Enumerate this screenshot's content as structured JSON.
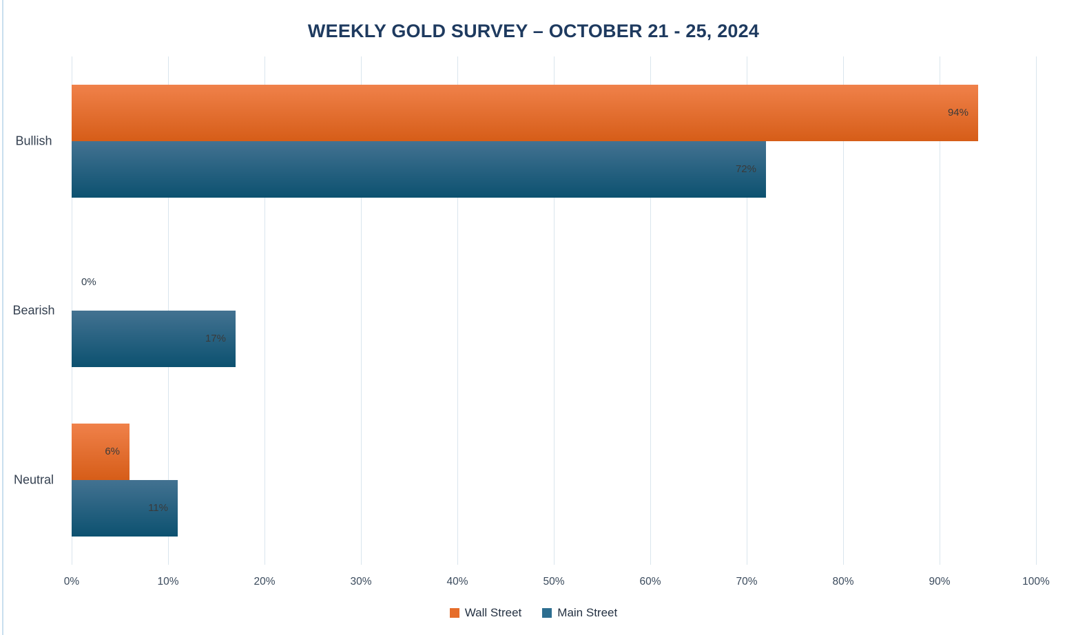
{
  "chart_data": {
    "type": "bar",
    "orientation": "horizontal",
    "title": "WEEKLY GOLD SURVEY – OCTOBER 21 - 25, 2024",
    "categories": [
      "Bullish",
      "Bearish",
      "Neutral"
    ],
    "series": [
      {
        "name": "Wall Street",
        "values": [
          94,
          0,
          6
        ],
        "color_top": "#f0814a",
        "color_bottom": "#d65d18",
        "legend_color": "#e66d2a"
      },
      {
        "name": "Main Street",
        "values": [
          72,
          17,
          11
        ],
        "color_top": "#437291",
        "color_bottom": "#0c5170",
        "legend_color": "#2d6e90"
      }
    ],
    "value_label_format": "percent",
    "xlim": [
      0,
      100
    ],
    "x_ticks": [
      "0%",
      "10%",
      "20%",
      "30%",
      "40%",
      "50%",
      "60%",
      "70%",
      "80%",
      "90%",
      "100%"
    ],
    "grid": "vertical-only",
    "legend_position": "bottom-center"
  },
  "style": {
    "title_color": "#1e3a5f",
    "grid_color": "#d9e5ed",
    "axis_text_color": "#3a4a5c",
    "data_label_color": "#3a3a3a",
    "left_border_color": "#c9dfee",
    "background": "#ffffff"
  }
}
